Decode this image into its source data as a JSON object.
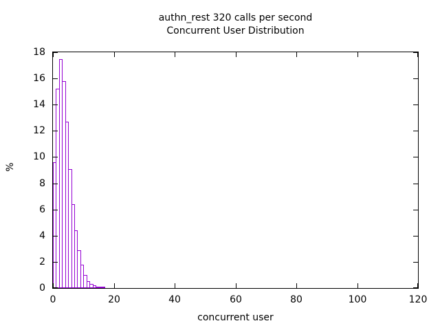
{
  "title": {
    "line1": "authn_rest 320 calls per second",
    "line2": "Concurrent User Distribution"
  },
  "axes": {
    "xlabel": "concurrent user",
    "ylabel": "%"
  },
  "chart_data": {
    "type": "bar",
    "subtype": "histogram-outline",
    "title": "authn_rest 320 calls per second",
    "subtitle": "Concurrent User Distribution",
    "xlabel": "concurrent user",
    "ylabel": "%",
    "xlim": [
      0,
      120
    ],
    "ylim": [
      0,
      18
    ],
    "xticks": [
      0,
      20,
      40,
      60,
      80,
      100,
      120
    ],
    "yticks": [
      0,
      2,
      4,
      6,
      8,
      10,
      12,
      14,
      16,
      18
    ],
    "grid": false,
    "legend": "none",
    "bin_width": 1,
    "categories": [
      0,
      1,
      2,
      3,
      4,
      5,
      6,
      7,
      8,
      9,
      10,
      11,
      12,
      13,
      14,
      15,
      16
    ],
    "values": [
      9.6,
      15.2,
      17.5,
      15.8,
      12.7,
      9.1,
      6.4,
      4.4,
      2.9,
      1.8,
      1.0,
      0.55,
      0.3,
      0.2,
      0.12,
      0.1,
      0.05
    ],
    "bar_color": "#9400d3"
  },
  "colors": {
    "background": "#ffffff",
    "axis": "#000000",
    "text": "#000000",
    "bar_outline": "#9400d3"
  }
}
